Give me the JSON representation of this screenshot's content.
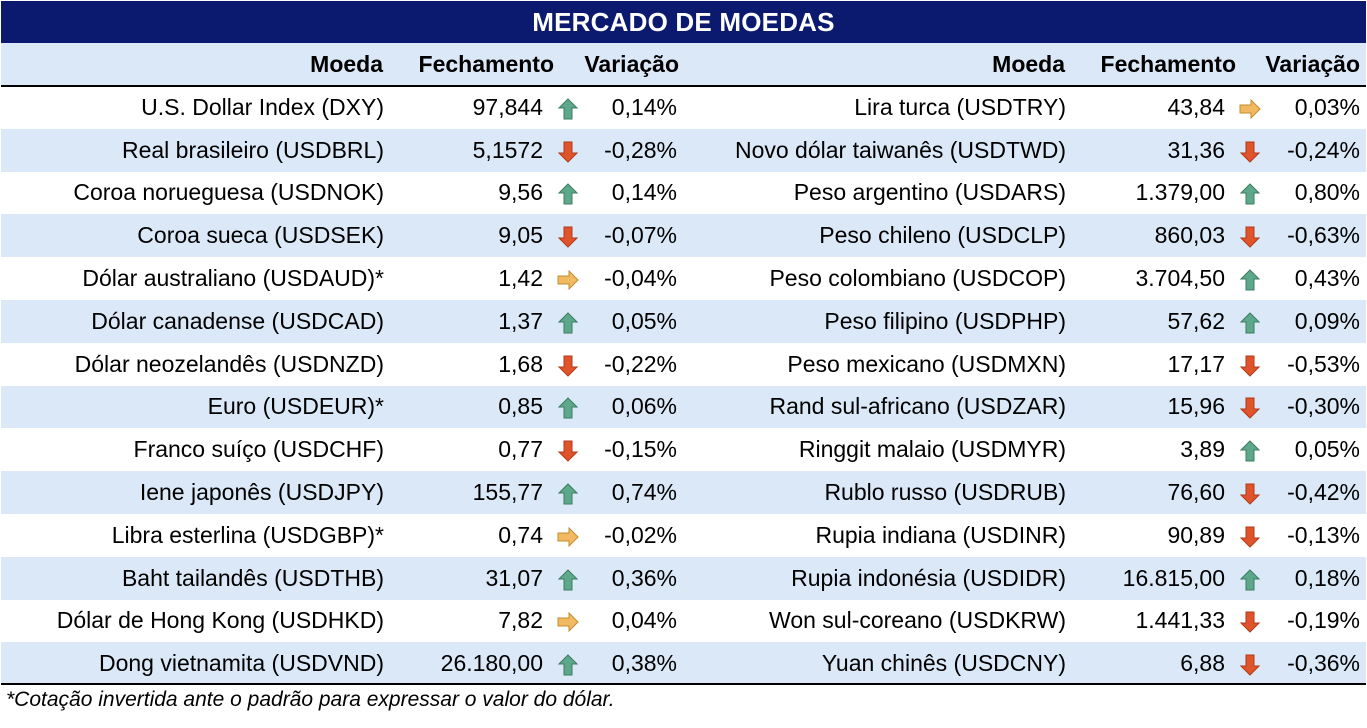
{
  "title": "MERCADO DE MOEDAS",
  "headers": {
    "currency": "Moeda",
    "close": "Fechamento",
    "change": "Variação"
  },
  "icon_colors": {
    "up": "#5da88a",
    "down": "#e0542c",
    "flat": "#f1b962"
  },
  "left": [
    {
      "name": "U.S. Dollar Index (DXY)",
      "close": "97,844",
      "dir": "up",
      "change": "0,14%"
    },
    {
      "name": "Real brasileiro (USDBRL)",
      "close": "5,1572",
      "dir": "down",
      "change": "-0,28%"
    },
    {
      "name": "Coroa norueguesa (USDNOK)",
      "close": "9,56",
      "dir": "up",
      "change": "0,14%"
    },
    {
      "name": "Coroa sueca (USDSEK)",
      "close": "9,05",
      "dir": "down",
      "change": "-0,07%"
    },
    {
      "name": "Dólar australiano (USDAUD)*",
      "close": "1,42",
      "dir": "flat",
      "change": "-0,04%"
    },
    {
      "name": "Dólar canadense (USDCAD)",
      "close": "1,37",
      "dir": "up",
      "change": "0,05%"
    },
    {
      "name": "Dólar neozelandês (USDNZD)",
      "close": "1,68",
      "dir": "down",
      "change": "-0,22%"
    },
    {
      "name": "Euro (USDEUR)*",
      "close": "0,85",
      "dir": "up",
      "change": "0,06%"
    },
    {
      "name": "Franco suíço (USDCHF)",
      "close": "0,77",
      "dir": "down",
      "change": "-0,15%"
    },
    {
      "name": "Iene japonês (USDJPY)",
      "close": "155,77",
      "dir": "up",
      "change": "0,74%"
    },
    {
      "name": "Libra esterlina (USDGBP)*",
      "close": "0,74",
      "dir": "flat",
      "change": "-0,02%"
    },
    {
      "name": "Baht tailandês (USDTHB)",
      "close": "31,07",
      "dir": "up",
      "change": "0,36%"
    },
    {
      "name": "Dólar de Hong Kong (USDHKD)",
      "close": "7,82",
      "dir": "flat",
      "change": "0,04%"
    },
    {
      "name": "Dong vietnamita (USDVND)",
      "close": "26.180,00",
      "dir": "up",
      "change": "0,38%"
    }
  ],
  "right": [
    {
      "name": "Lira turca (USDTRY)",
      "close": "43,84",
      "dir": "flat",
      "change": "0,03%"
    },
    {
      "name": "Novo dólar taiwanês (USDTWD)",
      "close": "31,36",
      "dir": "down",
      "change": "-0,24%"
    },
    {
      "name": "Peso argentino (USDARS)",
      "close": "1.379,00",
      "dir": "up",
      "change": "0,80%"
    },
    {
      "name": "Peso chileno (USDCLP)",
      "close": "860,03",
      "dir": "down",
      "change": "-0,63%"
    },
    {
      "name": "Peso colombiano (USDCOP)",
      "close": "3.704,50",
      "dir": "up",
      "change": "0,43%"
    },
    {
      "name": "Peso filipino (USDPHP)",
      "close": "57,62",
      "dir": "up",
      "change": "0,09%"
    },
    {
      "name": "Peso mexicano (USDMXN)",
      "close": "17,17",
      "dir": "down",
      "change": "-0,53%"
    },
    {
      "name": "Rand sul-africano (USDZAR)",
      "close": "15,96",
      "dir": "down",
      "change": "-0,30%"
    },
    {
      "name": "Ringgit malaio (USDMYR)",
      "close": "3,89",
      "dir": "up",
      "change": "0,05%"
    },
    {
      "name": "Rublo russo (USDRUB)",
      "close": "76,60",
      "dir": "down",
      "change": "-0,42%"
    },
    {
      "name": "Rupia indiana (USDINR)",
      "close": "90,89",
      "dir": "down",
      "change": "-0,13%"
    },
    {
      "name": "Rupia indonésia (USDIDR)",
      "close": "16.815,00",
      "dir": "up",
      "change": "0,18%"
    },
    {
      "name": "Won sul-coreano (USDKRW)",
      "close": "1.441,33",
      "dir": "down",
      "change": "-0,19%"
    },
    {
      "name": "Yuan chinês (USDCNY)",
      "close": "6,88",
      "dir": "down",
      "change": "-0,36%"
    }
  ],
  "footnote": "*Cotação invertida ante o padrão para expressar o valor do dólar."
}
